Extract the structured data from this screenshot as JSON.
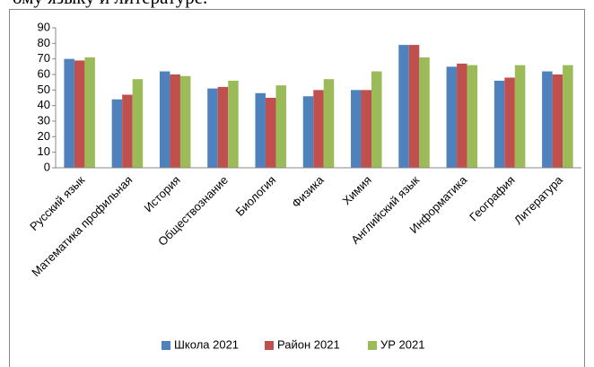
{
  "caption": "ому языку и литературе.",
  "chart_data": {
    "type": "bar",
    "categories": [
      "Русский язык",
      "Математика профильная",
      "История",
      "Обществознание",
      "Биология",
      "Физика",
      "Химия",
      "Английский язык",
      "Информатика",
      "География",
      "Литература"
    ],
    "series": [
      {
        "name": "Школа 2021",
        "color": "#4f81bd",
        "values": [
          70,
          44,
          62,
          51,
          48,
          46,
          50,
          79,
          65,
          56,
          62
        ]
      },
      {
        "name": "Район 2021",
        "color": "#c0504d",
        "values": [
          69,
          47,
          60,
          52,
          45,
          50,
          50,
          79,
          67,
          58,
          60
        ]
      },
      {
        "name": "УР 2021",
        "color": "#9bbb59",
        "values": [
          71,
          57,
          59,
          56,
          53,
          57,
          62,
          71,
          66,
          66,
          66
        ]
      }
    ],
    "ylim": [
      0,
      90
    ],
    "yticks": [
      0,
      10,
      20,
      30,
      40,
      50,
      60,
      70,
      80,
      90
    ],
    "grid": false,
    "legend": "bottom"
  }
}
